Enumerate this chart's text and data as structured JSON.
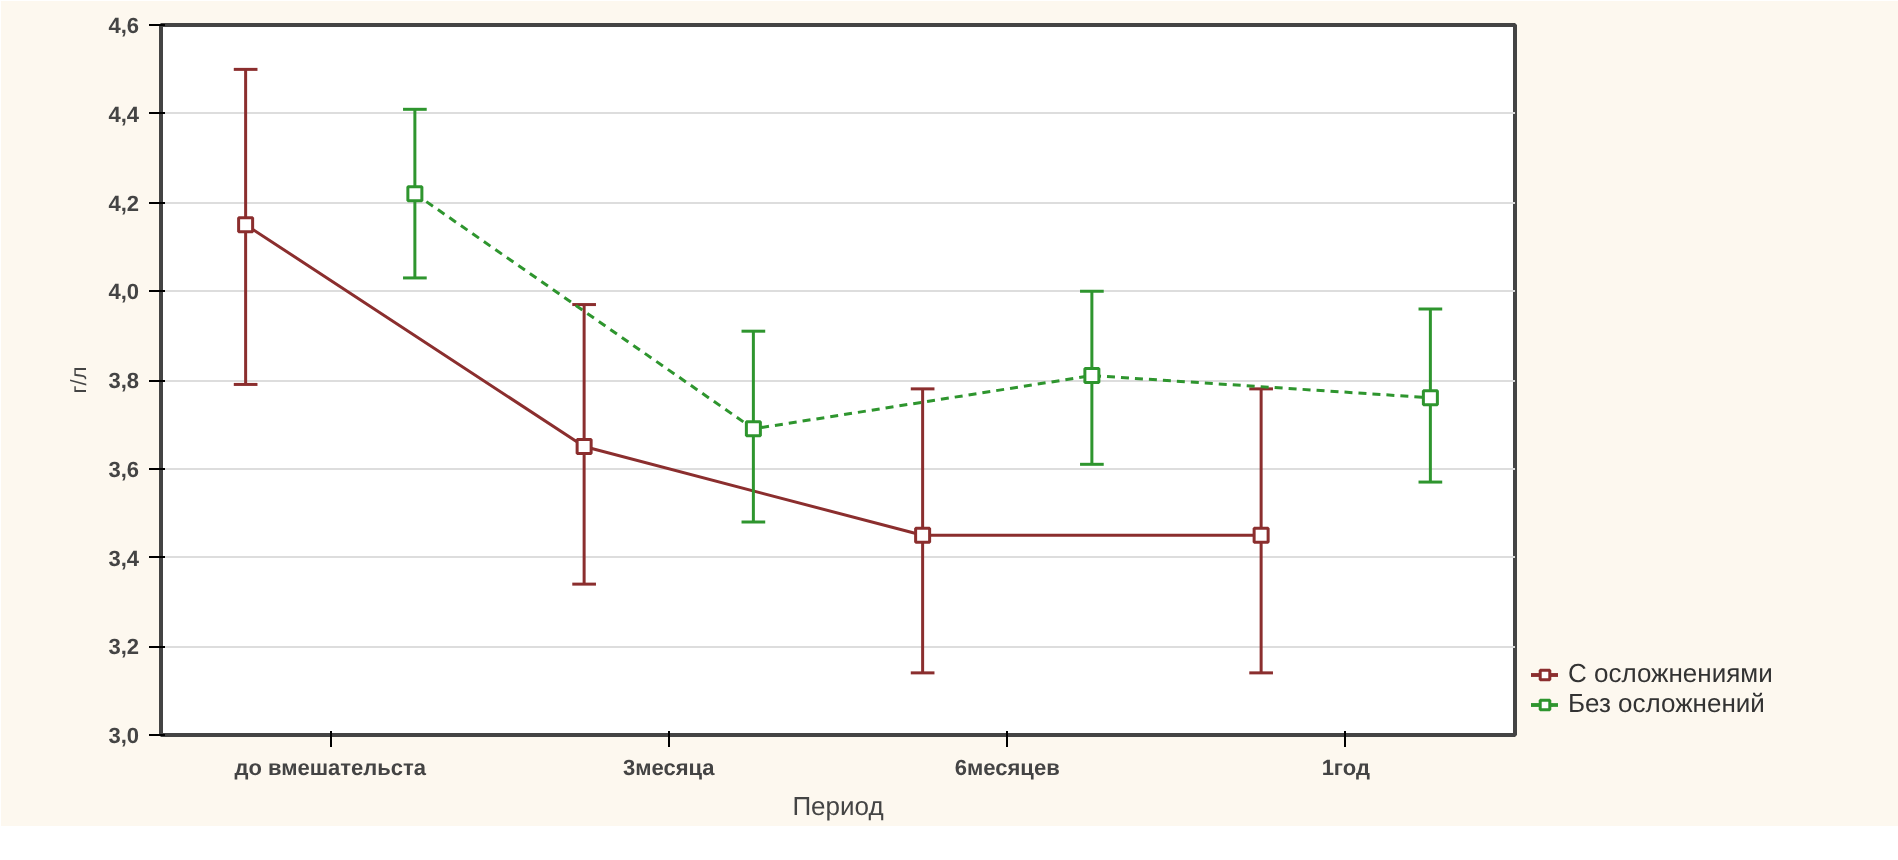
{
  "chart_data": {
    "type": "line",
    "xlabel": "Период",
    "ylabel": "г/л",
    "categories": [
      "до вмешательста",
      "3месяца",
      "6месяцев",
      "1год"
    ],
    "series": [
      {
        "name": "С осложнениями",
        "color": "#8b2e2e",
        "line_style": "solid",
        "values": [
          4.15,
          3.65,
          3.45,
          3.45
        ],
        "errors": [
          [
            3.79,
            4.5
          ],
          [
            3.34,
            3.97
          ],
          [
            3.14,
            3.78
          ],
          [
            3.14,
            3.78
          ]
        ]
      },
      {
        "name": "Без осложнений",
        "color": "#2e952e",
        "line_style": "dashed",
        "values": [
          4.22,
          3.69,
          3.81,
          3.76
        ],
        "errors": [
          [
            4.03,
            4.41
          ],
          [
            3.48,
            3.91
          ],
          [
            3.61,
            4.0
          ],
          [
            3.57,
            3.96
          ]
        ]
      }
    ],
    "ylim": [
      3.0,
      4.6
    ],
    "yticks": [
      {
        "value": 3.0,
        "label": "3,0"
      },
      {
        "value": 3.2,
        "label": "3,2"
      },
      {
        "value": 3.4,
        "label": "3,4"
      },
      {
        "value": 3.6,
        "label": "3,6"
      },
      {
        "value": 3.8,
        "label": "3,8"
      },
      {
        "value": 4.0,
        "label": "4,0"
      },
      {
        "value": 4.2,
        "label": "4,2"
      },
      {
        "value": 4.4,
        "label": "4,4"
      },
      {
        "value": 4.6,
        "label": "4,6"
      }
    ],
    "grid": "y",
    "legend": "bottom right",
    "marker": "square"
  }
}
